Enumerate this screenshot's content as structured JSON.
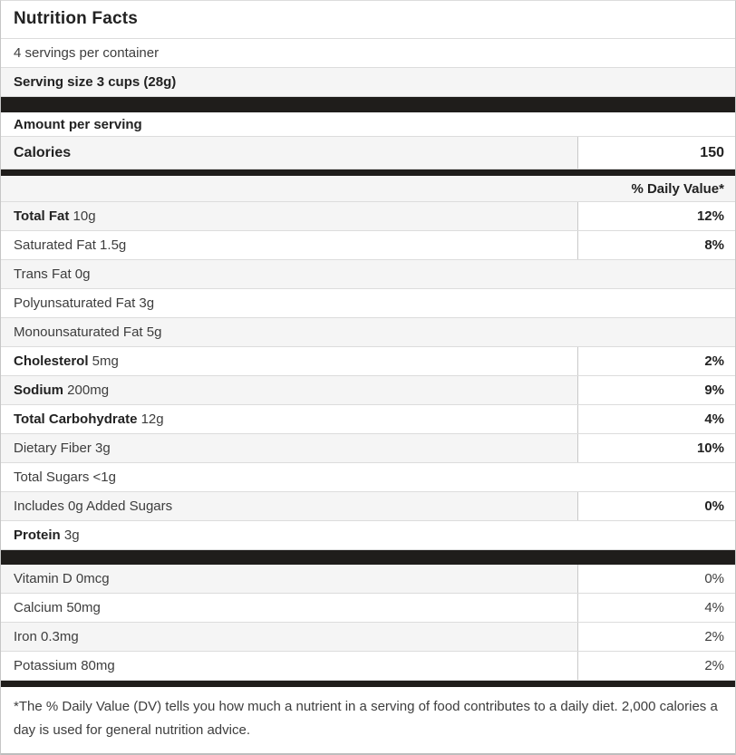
{
  "label": {
    "title": "Nutrition Facts",
    "servings_per_container": "4 servings per container",
    "serving_size": "Serving size 3 cups (28g)",
    "amount_per_serving": "Amount per serving",
    "calories": {
      "name": "Calories",
      "value": "150"
    },
    "daily_value_header": "% Daily Value*",
    "nutrients": [
      {
        "bold": "Total Fat",
        "rest": "10g",
        "pct": "12%",
        "pct_bold": true,
        "shade": true
      },
      {
        "rest": "Saturated Fat 1.5g",
        "pct": "8%",
        "pct_bold": true,
        "shade": false
      },
      {
        "rest": "Trans Fat 0g",
        "shade": true
      },
      {
        "rest": "Polyunsaturated Fat 3g",
        "shade": false
      },
      {
        "rest": "Monounsaturated Fat 5g",
        "shade": true
      },
      {
        "bold": "Cholesterol",
        "rest": "5mg",
        "pct": "2%",
        "pct_bold": true,
        "shade": false
      },
      {
        "bold": "Sodium",
        "rest": "200mg",
        "pct": "9%",
        "pct_bold": true,
        "shade": true
      },
      {
        "bold": "Total Carbohydrate",
        "rest": "12g",
        "pct": "4%",
        "pct_bold": true,
        "shade": false
      },
      {
        "rest": "Dietary Fiber 3g",
        "pct": "10%",
        "pct_bold": true,
        "shade": true
      },
      {
        "rest": "Total Sugars <1g",
        "shade": false
      },
      {
        "rest": "Includes 0g Added Sugars",
        "pct": "0%",
        "pct_bold": true,
        "shade": true
      },
      {
        "bold": "Protein",
        "rest": "3g",
        "shade": false
      }
    ],
    "vitamins": [
      {
        "rest": "Vitamin D 0mcg",
        "pct": "0%",
        "pct_bold": false,
        "shade": true
      },
      {
        "rest": "Calcium 50mg",
        "pct": "4%",
        "pct_bold": false,
        "shade": false
      },
      {
        "rest": "Iron 0.3mg",
        "pct": "2%",
        "pct_bold": false,
        "shade": true
      },
      {
        "rest": "Potassium 80mg",
        "pct": "2%",
        "pct_bold": false,
        "shade": false
      }
    ],
    "footnote": "*The % Daily Value (DV) tells you how much a nutrient in a serving of food contributes to a daily diet. 2,000 calories a day is used for general nutrition advice."
  },
  "colors": {
    "bar": "#1f1d1b",
    "row_shade": "#f5f5f5",
    "row_border": "#dcdcdc",
    "column_divider": "#c9c9c9",
    "outer_border": "#c6c6c6",
    "text": "#3d3d3d",
    "heading_text": "#222222"
  }
}
